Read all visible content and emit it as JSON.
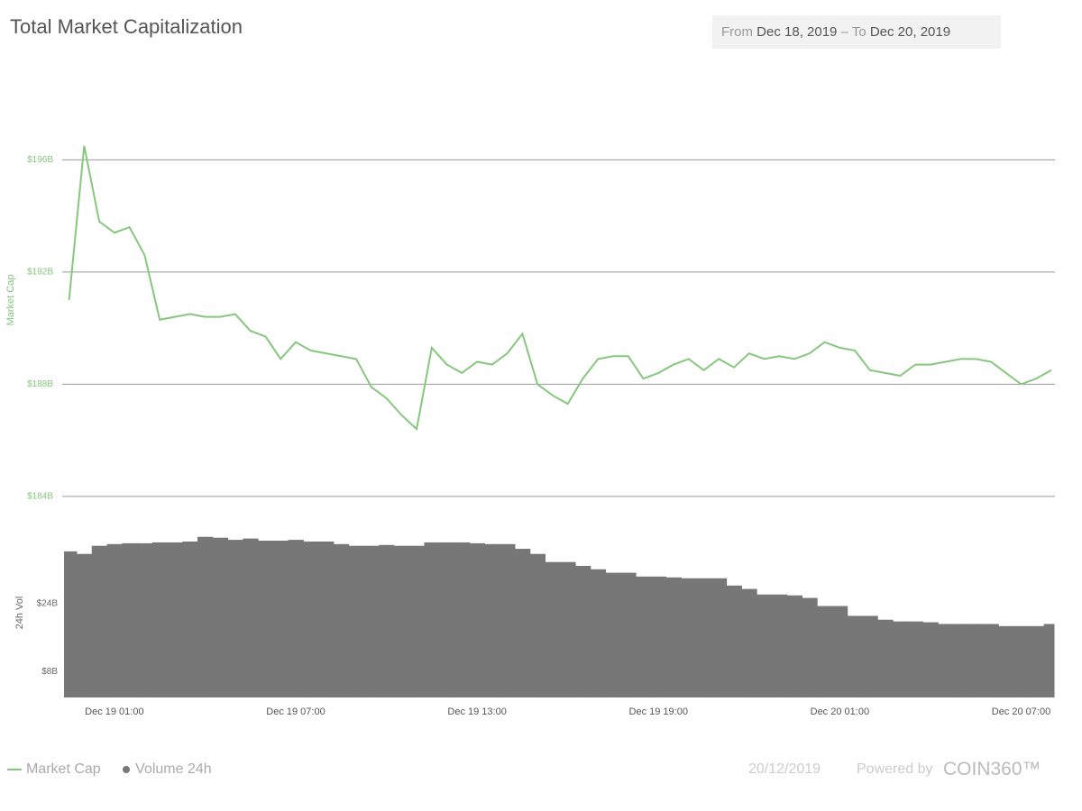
{
  "header": {
    "title": "Total Market Capitalization",
    "date_range": {
      "from_label": "From",
      "from": "Dec 18, 2019",
      "separator": "–",
      "to_label": "To",
      "to": "Dec 20, 2019"
    }
  },
  "chart_data": [
    {
      "type": "line",
      "ylabel": "Market Cap",
      "x": [
        "Dec 18 23:30",
        "Dec 19 00:00",
        "Dec 19 00:30",
        "Dec 19 01:00",
        "Dec 19 01:30",
        "Dec 19 02:00",
        "Dec 19 02:30",
        "Dec 19 03:00",
        "Dec 19 03:30",
        "Dec 19 04:00",
        "Dec 19 04:30",
        "Dec 19 05:00",
        "Dec 19 05:30",
        "Dec 19 06:00",
        "Dec 19 06:30",
        "Dec 19 07:00",
        "Dec 19 07:30",
        "Dec 19 08:00",
        "Dec 19 08:30",
        "Dec 19 09:00",
        "Dec 19 09:30",
        "Dec 19 10:00",
        "Dec 19 10:30",
        "Dec 19 11:00",
        "Dec 19 11:30",
        "Dec 19 12:00",
        "Dec 19 12:30",
        "Dec 19 13:00",
        "Dec 19 13:30",
        "Dec 19 14:00",
        "Dec 19 14:30",
        "Dec 19 15:00",
        "Dec 19 15:30",
        "Dec 19 16:00",
        "Dec 19 16:30",
        "Dec 19 17:00",
        "Dec 19 17:30",
        "Dec 19 18:00",
        "Dec 19 18:30",
        "Dec 19 19:00",
        "Dec 19 19:30",
        "Dec 19 20:00",
        "Dec 19 20:30",
        "Dec 19 21:00",
        "Dec 19 21:30",
        "Dec 19 22:00",
        "Dec 19 22:30",
        "Dec 19 23:00",
        "Dec 19 23:30",
        "Dec 20 00:00",
        "Dec 20 00:30",
        "Dec 20 01:00",
        "Dec 20 01:30",
        "Dec 20 02:00",
        "Dec 20 02:30",
        "Dec 20 03:00",
        "Dec 20 03:30",
        "Dec 20 04:00",
        "Dec 20 04:30",
        "Dec 20 05:00",
        "Dec 20 05:30",
        "Dec 20 06:00",
        "Dec 20 06:30",
        "Dec 20 07:00",
        "Dec 20 07:30",
        "Dec 20 08:00"
      ],
      "series": [
        {
          "name": "Market Cap",
          "color": "#86c77d",
          "values": [
            191.0,
            196.5,
            193.8,
            193.4,
            193.6,
            192.6,
            190.3,
            190.4,
            190.5,
            190.4,
            190.4,
            190.5,
            189.9,
            189.7,
            188.9,
            189.5,
            189.2,
            189.1,
            189.0,
            188.9,
            187.9,
            187.5,
            186.9,
            186.4,
            189.3,
            188.7,
            188.4,
            188.8,
            188.7,
            189.1,
            189.8,
            188.0,
            187.6,
            187.3,
            188.2,
            188.9,
            189.0,
            189.0,
            188.2,
            188.4,
            188.7,
            188.9,
            188.5,
            188.9,
            188.6,
            189.1,
            188.9,
            189.0,
            188.9,
            189.1,
            189.5,
            189.3,
            189.2,
            188.5,
            188.4,
            188.3,
            188.7,
            188.7,
            188.8,
            188.9,
            188.9,
            188.8,
            188.4,
            188.0,
            188.2,
            188.5
          ]
        }
      ],
      "ylim": [
        183,
        199
      ],
      "yticks": [
        {
          "value": 184,
          "label": "$184B"
        },
        {
          "value": 188,
          "label": "$188B"
        },
        {
          "value": 192,
          "label": "$192B"
        },
        {
          "value": 196,
          "label": "$196B"
        }
      ],
      "xlim": [
        "Dec 18 23:20",
        "Dec 20 08:00"
      ],
      "grid": true
    },
    {
      "type": "bar",
      "ylabel": "24h Vol",
      "x": [
        "Dec 18 23:30",
        "Dec 19 00:00",
        "Dec 19 00:30",
        "Dec 19 01:00",
        "Dec 19 01:30",
        "Dec 19 02:00",
        "Dec 19 02:30",
        "Dec 19 03:00",
        "Dec 19 03:30",
        "Dec 19 04:00",
        "Dec 19 04:30",
        "Dec 19 05:00",
        "Dec 19 05:30",
        "Dec 19 06:00",
        "Dec 19 06:30",
        "Dec 19 07:00",
        "Dec 19 07:30",
        "Dec 19 08:00",
        "Dec 19 08:30",
        "Dec 19 09:00",
        "Dec 19 09:30",
        "Dec 19 10:00",
        "Dec 19 10:30",
        "Dec 19 11:00",
        "Dec 19 11:30",
        "Dec 19 12:00",
        "Dec 19 12:30",
        "Dec 19 13:00",
        "Dec 19 13:30",
        "Dec 19 14:00",
        "Dec 19 14:30",
        "Dec 19 15:00",
        "Dec 19 15:30",
        "Dec 19 16:00",
        "Dec 19 16:30",
        "Dec 19 17:00",
        "Dec 19 17:30",
        "Dec 19 18:00",
        "Dec 19 18:30",
        "Dec 19 19:00",
        "Dec 19 19:30",
        "Dec 19 20:00",
        "Dec 19 20:30",
        "Dec 19 21:00",
        "Dec 19 21:30",
        "Dec 19 22:00",
        "Dec 19 22:30",
        "Dec 19 23:00",
        "Dec 19 23:30",
        "Dec 20 00:00",
        "Dec 20 00:30",
        "Dec 20 01:00",
        "Dec 20 01:30",
        "Dec 20 02:00",
        "Dec 20 02:30",
        "Dec 20 03:00",
        "Dec 20 03:30",
        "Dec 20 04:00",
        "Dec 20 04:30",
        "Dec 20 05:00",
        "Dec 20 05:30",
        "Dec 20 06:00",
        "Dec 20 06:30",
        "Dec 20 07:00",
        "Dec 20 07:30",
        "Dec 20 08:00"
      ],
      "series": [
        {
          "name": "Volume 24h",
          "color": "#777777",
          "values": [
            36.2,
            35.6,
            37.5,
            37.9,
            38.1,
            38.1,
            38.3,
            38.3,
            38.5,
            39.6,
            39.4,
            38.9,
            39.2,
            38.7,
            38.7,
            38.9,
            38.5,
            38.5,
            37.9,
            37.5,
            37.5,
            37.7,
            37.5,
            37.5,
            38.3,
            38.3,
            38.3,
            38.1,
            37.9,
            37.9,
            36.8,
            35.6,
            33.7,
            33.7,
            32.8,
            32.0,
            31.2,
            31.2,
            30.3,
            30.3,
            30.1,
            29.9,
            29.9,
            29.9,
            28.2,
            27.4,
            26.1,
            26.1,
            25.9,
            25.3,
            23.4,
            23.4,
            21.1,
            21.1,
            20.2,
            19.8,
            19.8,
            19.6,
            19.2,
            19.2,
            19.2,
            19.2,
            18.7,
            18.7,
            18.7,
            19.2
          ]
        }
      ],
      "ylim": [
        2,
        42.5
      ],
      "yticks": [
        {
          "value": 8,
          "label": "$8B"
        },
        {
          "value": 24,
          "label": "$24B"
        }
      ],
      "xlim": [
        "Dec 18 23:20",
        "Dec 20 08:00"
      ],
      "xticks": [
        "Dec 19 01:00",
        "Dec 19 07:00",
        "Dec 19 13:00",
        "Dec 19 19:00",
        "Dec 20 01:00",
        "Dec 20 07:00"
      ]
    }
  ],
  "footer": {
    "date": "20/12/2019",
    "powered_by": "Powered by",
    "brand": "COIN360™"
  }
}
